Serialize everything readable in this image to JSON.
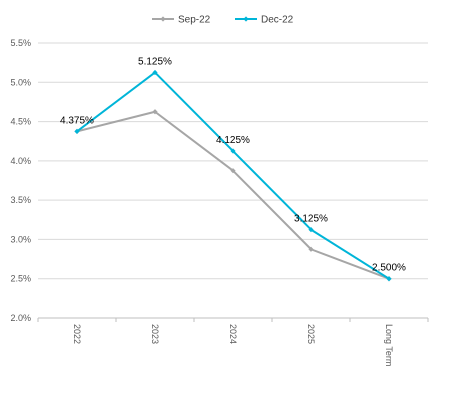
{
  "chart_data": {
    "type": "line",
    "title": "",
    "xlabel": "",
    "ylabel": "",
    "categories": [
      "2022",
      "2023",
      "2024",
      "2025",
      "Long Term"
    ],
    "y_ticks": [
      "2.0%",
      "2.5%",
      "3.0%",
      "3.5%",
      "4.0%",
      "4.5%",
      "5.0%",
      "5.5%"
    ],
    "y_tick_values": [
      2.0,
      2.5,
      3.0,
      3.5,
      4.0,
      4.5,
      5.0,
      5.5
    ],
    "ylim": [
      2.0,
      5.5
    ],
    "grid": true,
    "legend_position": "top-center",
    "series": [
      {
        "name": "Sep-22",
        "color": "#a6a6a6",
        "values": [
          4.375,
          4.625,
          3.875,
          2.875,
          2.5
        ],
        "data_labels": [
          "",
          "",
          "",
          "",
          ""
        ]
      },
      {
        "name": "Dec-22",
        "color": "#00b5d8",
        "values": [
          4.375,
          5.125,
          4.125,
          3.125,
          2.5
        ],
        "data_labels": [
          "4.375%",
          "5.125%",
          "4.125%",
          "3.125%",
          "2.500%"
        ]
      }
    ]
  }
}
